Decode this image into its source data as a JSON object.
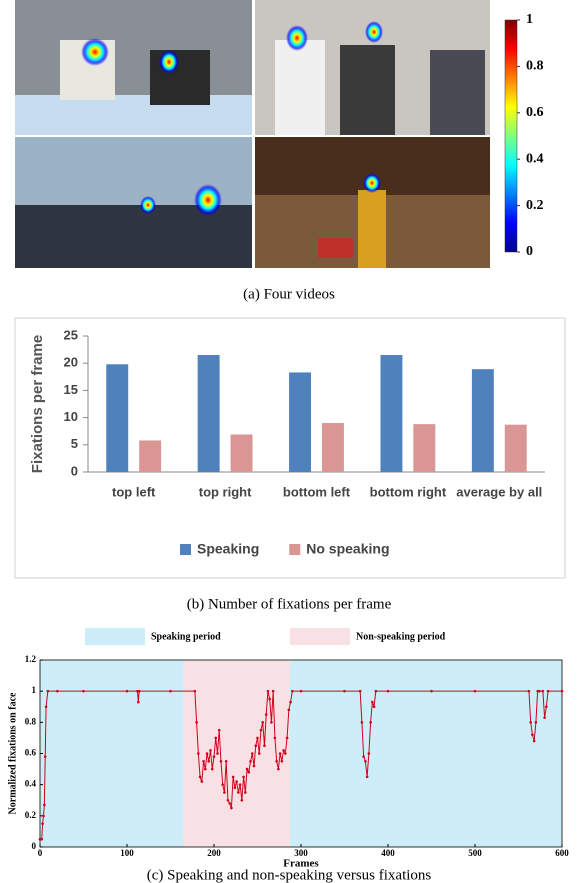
{
  "chart_data": [
    {
      "type": "colorbar",
      "caption": "(a) Four videos",
      "colors": [
        "#00008f",
        "#0000ff",
        "#0080ff",
        "#00ffff",
        "#80ff80",
        "#ffff00",
        "#ff8000",
        "#ff0000",
        "#800000"
      ],
      "ylim": [
        0,
        1
      ],
      "yticks": [
        0,
        0.2,
        0.4,
        0.6,
        0.8,
        1
      ]
    },
    {
      "type": "bar",
      "caption": "(b) Number of fixations per frame",
      "y_label": "Fixations per frame",
      "categories": [
        "top left",
        "top right",
        "bottom left",
        "bottom right",
        "average by all"
      ],
      "series": [
        {
          "name": "Speaking",
          "color": "#4f81bd",
          "values": [
            19.8,
            21.5,
            18.3,
            21.5,
            18.9
          ]
        },
        {
          "name": "No speaking",
          "color": "#d99694",
          "values": [
            5.8,
            6.9,
            9.0,
            8.8,
            8.7
          ]
        }
      ],
      "ylim": [
        0,
        25
      ],
      "yticks": [
        0,
        5,
        10,
        15,
        20,
        25
      ],
      "legend": "bottom"
    },
    {
      "type": "line",
      "caption": "(c) Speaking and non-speaking versus fixations",
      "x_label": "Frames",
      "y_label": "Normalized fixations on face",
      "periods": [
        {
          "name": "Speaking period",
          "color": "#cdeef8",
          "ranges": [
            [
              0,
              165
            ],
            [
              287,
              600
            ]
          ]
        },
        {
          "name": "Non-speaking period",
          "color": "#f8e1e4",
          "ranges": [
            [
              165,
              287
            ]
          ]
        }
      ],
      "x": [
        0,
        2,
        3,
        4,
        5,
        6,
        7,
        9,
        20,
        50,
        100,
        112,
        113,
        114,
        150,
        178,
        180,
        182,
        184,
        186,
        188,
        190,
        192,
        194,
        196,
        198,
        200,
        202,
        204,
        206,
        208,
        210,
        212,
        214,
        216,
        218,
        220,
        222,
        224,
        226,
        228,
        230,
        232,
        234,
        236,
        238,
        240,
        242,
        244,
        246,
        248,
        250,
        252,
        254,
        256,
        258,
        260,
        262,
        264,
        266,
        268,
        270,
        272,
        274,
        276,
        278,
        280,
        282,
        284,
        286,
        288,
        290,
        300,
        350,
        368,
        370,
        372,
        374,
        376,
        378,
        380,
        382,
        384,
        386,
        400,
        450,
        500,
        562,
        564,
        566,
        568,
        570,
        572,
        574,
        578,
        580,
        582,
        584,
        600
      ],
      "series": [
        {
          "name": "Normalized fixations",
          "color": "#d0021b",
          "values": [
            0.05,
            0.05,
            0.15,
            0.2,
            0.27,
            0.58,
            0.9,
            1,
            1,
            1,
            1,
            1,
            0.93,
            1,
            1,
            1,
            0.8,
            0.6,
            0.45,
            0.42,
            0.55,
            0.5,
            0.6,
            0.55,
            0.62,
            0.5,
            0.58,
            0.7,
            0.6,
            0.75,
            0.55,
            0.4,
            0.35,
            0.55,
            0.3,
            0.28,
            0.25,
            0.45,
            0.38,
            0.42,
            0.35,
            0.4,
            0.3,
            0.45,
            0.35,
            0.5,
            0.48,
            0.55,
            0.6,
            0.52,
            0.65,
            0.7,
            0.6,
            0.75,
            0.8,
            0.65,
            0.85,
            1,
            0.95,
            0.8,
            1,
            0.7,
            0.55,
            0.5,
            0.6,
            0.55,
            0.62,
            0.6,
            0.7,
            0.88,
            0.93,
            1,
            1,
            1,
            1,
            0.8,
            0.58,
            0.55,
            0.45,
            0.6,
            0.8,
            0.93,
            0.9,
            1,
            1,
            1,
            1,
            1,
            0.8,
            0.72,
            0.68,
            0.8,
            1,
            1,
            1,
            0.83,
            0.9,
            1,
            1
          ]
        }
      ],
      "xlim": [
        0,
        600
      ],
      "xticks": [
        0,
        100,
        200,
        300,
        400,
        500,
        600
      ],
      "ylim": [
        0,
        1.2
      ],
      "yticks": [
        0,
        0.2,
        0.4,
        0.6,
        0.8,
        1,
        1.2
      ]
    }
  ]
}
